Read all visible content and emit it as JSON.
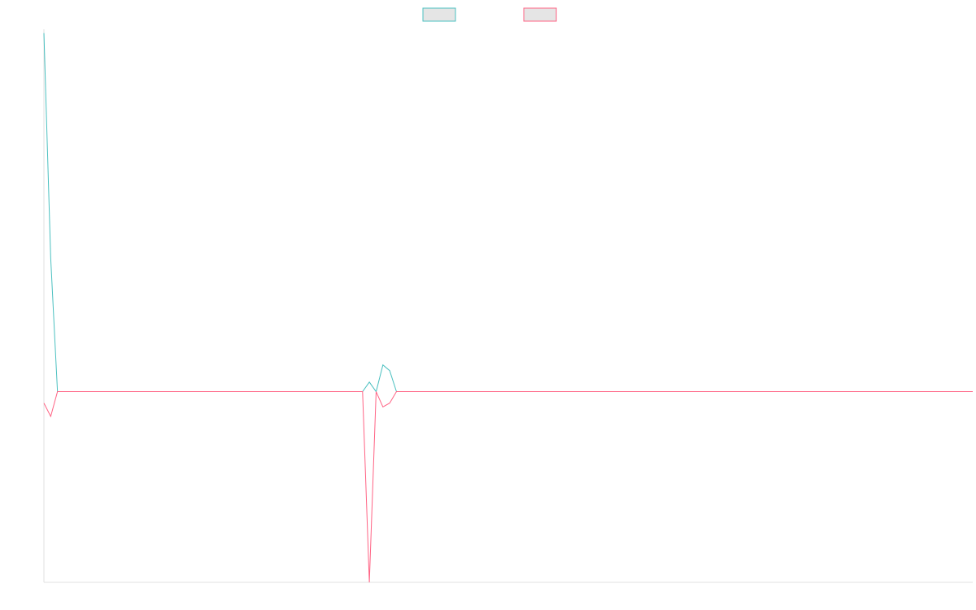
{
  "chart_data": {
    "type": "line",
    "title": "",
    "xlabel": "",
    "ylabel": "",
    "grid": false,
    "legend_position": "top-center",
    "x": [
      0,
      1,
      2,
      3,
      4,
      5,
      6,
      7,
      8,
      9,
      10,
      11,
      12,
      13,
      14,
      15,
      16,
      17,
      18,
      19,
      20,
      21,
      22,
      23,
      24,
      25,
      26,
      27,
      28,
      29,
      30,
      31,
      32,
      33,
      34,
      35,
      36,
      37,
      38,
      39,
      40,
      41,
      42,
      43,
      44,
      45,
      46,
      47,
      48,
      49,
      50,
      51,
      52,
      53,
      54,
      55,
      56,
      57,
      58,
      59,
      60,
      61,
      62,
      63,
      64,
      65,
      66,
      67,
      68,
      69,
      70,
      71,
      72,
      73,
      74,
      75,
      76,
      77,
      78,
      79,
      80,
      81,
      82,
      83,
      84,
      85,
      86,
      87,
      88,
      89,
      90,
      91,
      92,
      93,
      94,
      95,
      96,
      97,
      98,
      99,
      100,
      101,
      102,
      103,
      104,
      105,
      106,
      107,
      108,
      109,
      110,
      111,
      112,
      113,
      114,
      115,
      116,
      117,
      118,
      119,
      120,
      121,
      122,
      123,
      124,
      125,
      126,
      127,
      128,
      129,
      130,
      131,
      132,
      133,
      134,
      135,
      136,
      137
    ],
    "xlim": [
      0,
      137
    ],
    "ylim": [
      -1.0,
      1.9
    ],
    "series": [
      {
        "color": "#4bc0c0",
        "values": [
          1.88,
          0.7,
          0,
          0,
          0,
          0,
          0,
          0,
          0,
          0,
          0,
          0,
          0,
          0,
          0,
          0,
          0,
          0,
          0,
          0,
          0,
          0,
          0,
          0,
          0,
          0,
          0,
          0,
          0,
          0,
          0,
          0,
          0,
          0,
          0,
          0,
          0,
          0,
          0,
          0,
          0,
          0,
          0,
          0,
          0,
          0,
          0,
          0,
          0.05,
          0,
          0.14,
          0.11,
          0,
          0,
          0,
          0,
          0,
          0,
          0,
          0,
          0,
          0,
          0,
          0,
          0,
          0,
          0,
          0,
          0,
          0,
          0,
          0,
          0,
          0,
          0,
          0,
          0,
          0,
          0,
          0,
          0,
          0,
          0,
          0,
          0,
          0,
          0,
          0,
          0,
          0,
          0,
          0,
          0,
          0,
          0,
          0,
          0,
          0,
          0,
          0,
          0,
          0,
          0,
          0,
          0,
          0,
          0,
          0,
          0,
          0,
          0,
          0,
          0,
          0,
          0,
          0,
          0,
          0,
          0,
          0,
          0,
          0,
          0,
          0,
          0,
          0,
          0,
          0,
          0,
          0,
          0,
          0,
          0,
          0,
          0,
          0,
          0,
          0
        ]
      },
      {
        "color": "#ff6384",
        "values": [
          -0.06,
          -0.13,
          0,
          0,
          0,
          0,
          0,
          0,
          0,
          0,
          0,
          0,
          0,
          0,
          0,
          0,
          0,
          0,
          0,
          0,
          0,
          0,
          0,
          0,
          0,
          0,
          0,
          0,
          0,
          0,
          0,
          0,
          0,
          0,
          0,
          0,
          0,
          0,
          0,
          0,
          0,
          0,
          0,
          0,
          0,
          0,
          0,
          0,
          -1.0,
          0,
          -0.08,
          -0.06,
          0,
          0,
          0,
          0,
          0,
          0,
          0,
          0,
          0,
          0,
          0,
          0,
          0,
          0,
          0,
          0,
          0,
          0,
          0,
          0,
          0,
          0,
          0,
          0,
          0,
          0,
          0,
          0,
          0,
          0,
          0,
          0,
          0,
          0,
          0,
          0,
          0,
          0,
          0,
          0,
          0,
          0,
          0,
          0,
          0,
          0,
          0,
          0,
          0,
          0,
          0,
          0,
          0,
          0,
          0,
          0,
          0,
          0,
          0,
          0,
          0,
          0,
          0,
          0,
          0,
          0,
          0,
          0,
          0,
          0,
          0,
          0,
          0,
          0,
          0,
          0,
          0,
          0,
          0,
          0,
          0,
          0,
          0,
          0,
          0,
          0
        ]
      }
    ]
  }
}
